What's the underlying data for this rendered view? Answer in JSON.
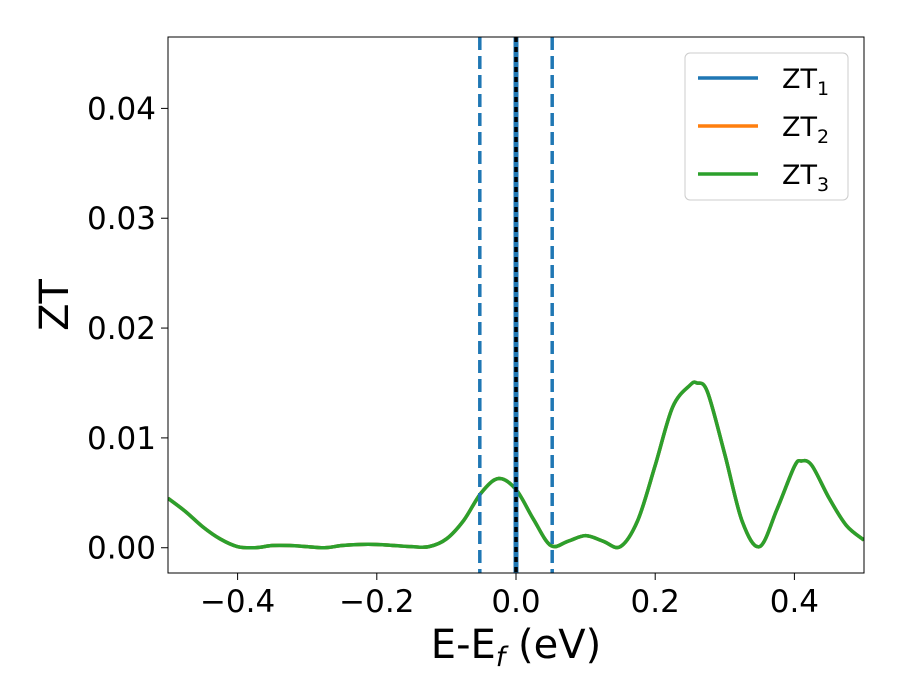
{
  "chart_data": {
    "type": "line",
    "xlabel_main": "E-E",
    "xlabel_sub": "f",
    "xlabel_unit": " (eV)",
    "ylabel": "ZT",
    "xlim": [
      -0.5,
      0.5
    ],
    "ylim": [
      -0.0023,
      0.0465
    ],
    "x_ticks": [
      -0.4,
      -0.2,
      0.0,
      0.2,
      0.4
    ],
    "x_tick_labels": [
      "−0.4",
      "−0.2",
      "0.0",
      "0.2",
      "0.4"
    ],
    "y_ticks": [
      0.0,
      0.01,
      0.02,
      0.03,
      0.04
    ],
    "y_tick_labels": [
      "0.00",
      "0.01",
      "0.02",
      "0.03",
      "0.04"
    ],
    "grid": false,
    "legend_position": "top-right",
    "series": [
      {
        "name": "ZT",
        "subscript": "1",
        "color": "#1f77b4",
        "x": [
          -0.5,
          -0.475,
          -0.45,
          -0.425,
          -0.4,
          -0.375,
          -0.35,
          -0.325,
          -0.3,
          -0.275,
          -0.25,
          -0.225,
          -0.2,
          -0.175,
          -0.15,
          -0.125,
          -0.1,
          -0.075,
          -0.05,
          -0.025,
          0.0,
          0.025,
          0.05,
          0.075,
          0.1,
          0.125,
          0.15,
          0.175,
          0.2,
          0.225,
          0.25,
          0.26,
          0.275,
          0.3,
          0.325,
          0.35,
          0.375,
          0.4,
          0.41,
          0.425,
          0.45,
          0.475,
          0.5
        ],
        "y": [
          0.0045,
          0.0033,
          0.0019,
          0.0008,
          0.0001,
          0.0,
          0.0002,
          0.0002,
          0.0001,
          0.0,
          0.0002,
          0.0003,
          0.0003,
          0.0002,
          0.0001,
          0.0001,
          0.0008,
          0.0025,
          0.005,
          0.0063,
          0.0053,
          0.0026,
          0.0002,
          0.0006,
          0.0011,
          0.0006,
          0.0001,
          0.0025,
          0.0075,
          0.0128,
          0.0148,
          0.015,
          0.0142,
          0.0085,
          0.0024,
          0.0001,
          0.0035,
          0.0074,
          0.0079,
          0.0075,
          0.0045,
          0.002,
          0.0007
        ]
      },
      {
        "name": "ZT",
        "subscript": "2",
        "color": "#ff7f0e",
        "x": [
          -0.5,
          -0.475,
          -0.45,
          -0.425,
          -0.4,
          -0.375,
          -0.35,
          -0.325,
          -0.3,
          -0.275,
          -0.25,
          -0.225,
          -0.2,
          -0.175,
          -0.15,
          -0.125,
          -0.1,
          -0.075,
          -0.05,
          -0.025,
          0.0,
          0.025,
          0.05,
          0.075,
          0.1,
          0.125,
          0.15,
          0.175,
          0.2,
          0.225,
          0.25,
          0.26,
          0.275,
          0.3,
          0.325,
          0.35,
          0.375,
          0.4,
          0.41,
          0.425,
          0.45,
          0.475,
          0.5
        ],
        "y": [
          0.0045,
          0.0033,
          0.0019,
          0.0008,
          0.0001,
          0.0,
          0.0002,
          0.0002,
          0.0001,
          0.0,
          0.0002,
          0.0003,
          0.0003,
          0.0002,
          0.0001,
          0.0001,
          0.0008,
          0.0025,
          0.005,
          0.0063,
          0.0053,
          0.0026,
          0.0002,
          0.0006,
          0.0011,
          0.0006,
          0.0001,
          0.0025,
          0.0075,
          0.0128,
          0.0148,
          0.015,
          0.0142,
          0.0085,
          0.0024,
          0.0001,
          0.0035,
          0.0074,
          0.0079,
          0.0075,
          0.0045,
          0.002,
          0.0007
        ]
      },
      {
        "name": "ZT",
        "subscript": "3",
        "color": "#2ca02c",
        "x": [
          -0.5,
          -0.475,
          -0.45,
          -0.425,
          -0.4,
          -0.375,
          -0.35,
          -0.325,
          -0.3,
          -0.275,
          -0.25,
          -0.225,
          -0.2,
          -0.175,
          -0.15,
          -0.125,
          -0.1,
          -0.075,
          -0.05,
          -0.025,
          0.0,
          0.025,
          0.05,
          0.075,
          0.1,
          0.125,
          0.15,
          0.175,
          0.2,
          0.225,
          0.25,
          0.26,
          0.275,
          0.3,
          0.325,
          0.35,
          0.375,
          0.4,
          0.41,
          0.425,
          0.45,
          0.475,
          0.5
        ],
        "y": [
          0.0045,
          0.0033,
          0.0019,
          0.0008,
          0.0001,
          0.0,
          0.0002,
          0.0002,
          0.0001,
          0.0,
          0.0002,
          0.0003,
          0.0003,
          0.0002,
          0.0001,
          0.0001,
          0.0008,
          0.0025,
          0.005,
          0.0063,
          0.0053,
          0.0026,
          0.0002,
          0.0006,
          0.0011,
          0.0006,
          0.0001,
          0.0025,
          0.0075,
          0.0128,
          0.0148,
          0.015,
          0.0142,
          0.0085,
          0.0024,
          0.0001,
          0.0035,
          0.0074,
          0.0079,
          0.0075,
          0.0045,
          0.002,
          0.0007
        ]
      }
    ],
    "vertical_lines": [
      {
        "x": -0.052,
        "style": "dashed",
        "color": "#1f77b4"
      },
      {
        "x": 0.052,
        "style": "dashed",
        "color": "#1f77b4"
      },
      {
        "x": 0.0,
        "style": "solid",
        "color": "#1f77b4"
      },
      {
        "x": 0.0,
        "style": "dotted",
        "color": "#000000"
      }
    ]
  }
}
